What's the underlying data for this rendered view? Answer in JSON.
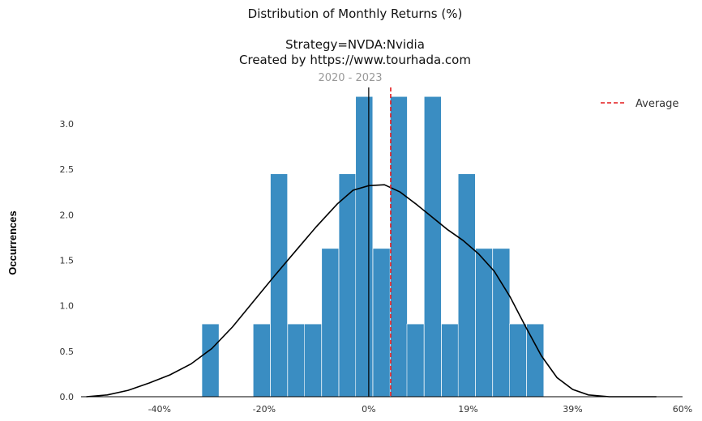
{
  "chart_data": {
    "type": "bar",
    "title": "Distribution of Monthly Returns (%)",
    "subtitle_lines": [
      "Strategy=NVDA:Nvidia",
      "Created by https://www.tourhada.com"
    ],
    "period": "2020 - 2023",
    "xlabel": "",
    "ylabel": "Occurrences",
    "x_ticks": [
      "-40%",
      "-20%",
      "0%",
      "19%",
      "39%",
      "60%"
    ],
    "x_tick_values": [
      -40,
      -20,
      0,
      19,
      39,
      60
    ],
    "y_ticks": [
      "0.0",
      "0.5",
      "1.0",
      "1.5",
      "2.0",
      "2.5",
      "3.0"
    ],
    "y_tick_values": [
      0,
      0.5,
      1.0,
      1.5,
      2.0,
      2.5,
      3.0
    ],
    "xlim": [
      -55,
      60
    ],
    "ylim": [
      0,
      3.4
    ],
    "bin_width": 3.27,
    "bins": [
      {
        "x": -31.9,
        "value": 0.8
      },
      {
        "x": -22.1,
        "value": 0.8
      },
      {
        "x": -18.8,
        "value": 2.45
      },
      {
        "x": -15.5,
        "value": 0.8
      },
      {
        "x": -12.3,
        "value": 0.8
      },
      {
        "x": -9.0,
        "value": 1.63
      },
      {
        "x": -5.7,
        "value": 2.45
      },
      {
        "x": -2.5,
        "value": 3.3
      },
      {
        "x": 0.8,
        "value": 1.63
      },
      {
        "x": 4.1,
        "value": 3.3
      },
      {
        "x": 7.3,
        "value": 0.8
      },
      {
        "x": 10.6,
        "value": 3.3
      },
      {
        "x": 13.9,
        "value": 0.8
      },
      {
        "x": 17.1,
        "value": 2.45
      },
      {
        "x": 20.4,
        "value": 1.63
      },
      {
        "x": 23.7,
        "value": 1.63
      },
      {
        "x": 26.9,
        "value": 0.8
      },
      {
        "x": 30.2,
        "value": 0.8
      }
    ],
    "kde": [
      [
        -54,
        0.0
      ],
      [
        -50,
        0.02
      ],
      [
        -46,
        0.07
      ],
      [
        -42,
        0.15
      ],
      [
        -38,
        0.24
      ],
      [
        -34,
        0.36
      ],
      [
        -30,
        0.53
      ],
      [
        -26,
        0.77
      ],
      [
        -22,
        1.05
      ],
      [
        -18,
        1.33
      ],
      [
        -14,
        1.6
      ],
      [
        -10,
        1.87
      ],
      [
        -6,
        2.12
      ],
      [
        -3,
        2.27
      ],
      [
        0,
        2.32
      ],
      [
        3,
        2.33
      ],
      [
        6,
        2.25
      ],
      [
        9,
        2.12
      ],
      [
        12,
        1.98
      ],
      [
        15,
        1.84
      ],
      [
        18,
        1.72
      ],
      [
        21,
        1.57
      ],
      [
        24,
        1.38
      ],
      [
        27,
        1.1
      ],
      [
        30,
        0.77
      ],
      [
        33,
        0.45
      ],
      [
        36,
        0.21
      ],
      [
        39,
        0.08
      ],
      [
        42,
        0.02
      ],
      [
        46,
        0.0
      ],
      [
        55,
        0.0
      ]
    ],
    "zero_line_x": 0,
    "average": 4.2,
    "legend": [
      {
        "label": "Average",
        "style": "dashed",
        "color": "#e41a1c"
      }
    ],
    "legend_position": "top-right",
    "grid": false,
    "bar_color": "#3a8dc2",
    "kde_color": "#000000"
  }
}
